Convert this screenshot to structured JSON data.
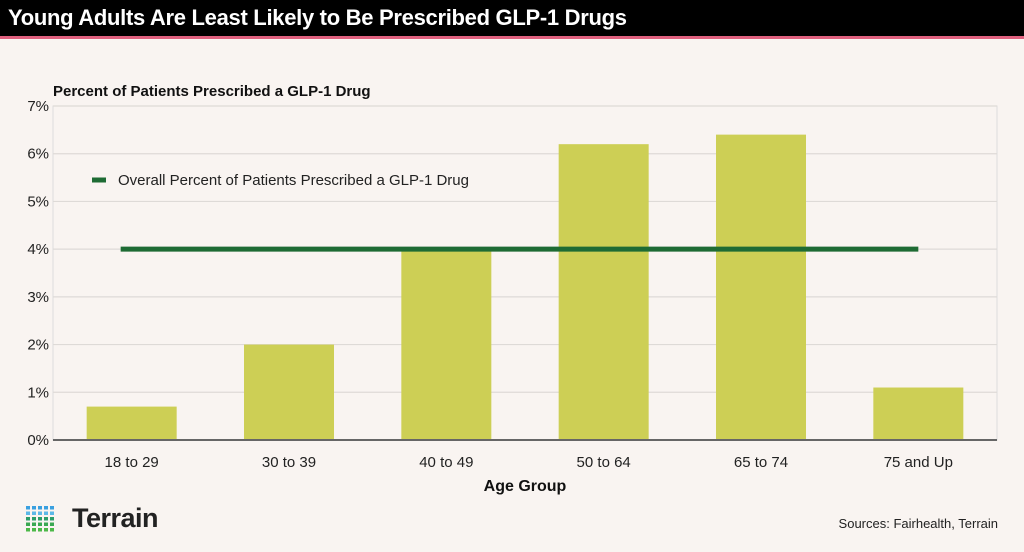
{
  "header": {
    "title": "Young Adults Are Least Likely to Be Prescribed GLP-1 Drugs"
  },
  "chart_data": {
    "type": "bar",
    "title": "Percent of Patients Prescribed a GLP-1 Drug",
    "xlabel": "Age Group",
    "ylabel": "",
    "categories": [
      "18 to 29",
      "30 to 39",
      "40 to 49",
      "50 to 64",
      "65 to 74",
      "75 and Up"
    ],
    "values": [
      0.7,
      2.0,
      4.0,
      6.2,
      6.4,
      1.1
    ],
    "ylim": [
      0,
      7
    ],
    "yticks": [
      0,
      1,
      2,
      3,
      4,
      5,
      6,
      7
    ],
    "ytick_labels": [
      "0%",
      "1%",
      "2%",
      "3%",
      "4%",
      "5%",
      "6%",
      "7%"
    ],
    "grid": true,
    "reference_line": {
      "name": "Overall Percent of Patients Prescribed a GLP-1 Drug",
      "value": 4.0,
      "color": "#1e6b34"
    },
    "legend_position": "top-left",
    "bar_color": "#cdcf55"
  },
  "footer": {
    "logo": "Terrain",
    "sources": "Sources: Fairhealth, Terrain"
  }
}
